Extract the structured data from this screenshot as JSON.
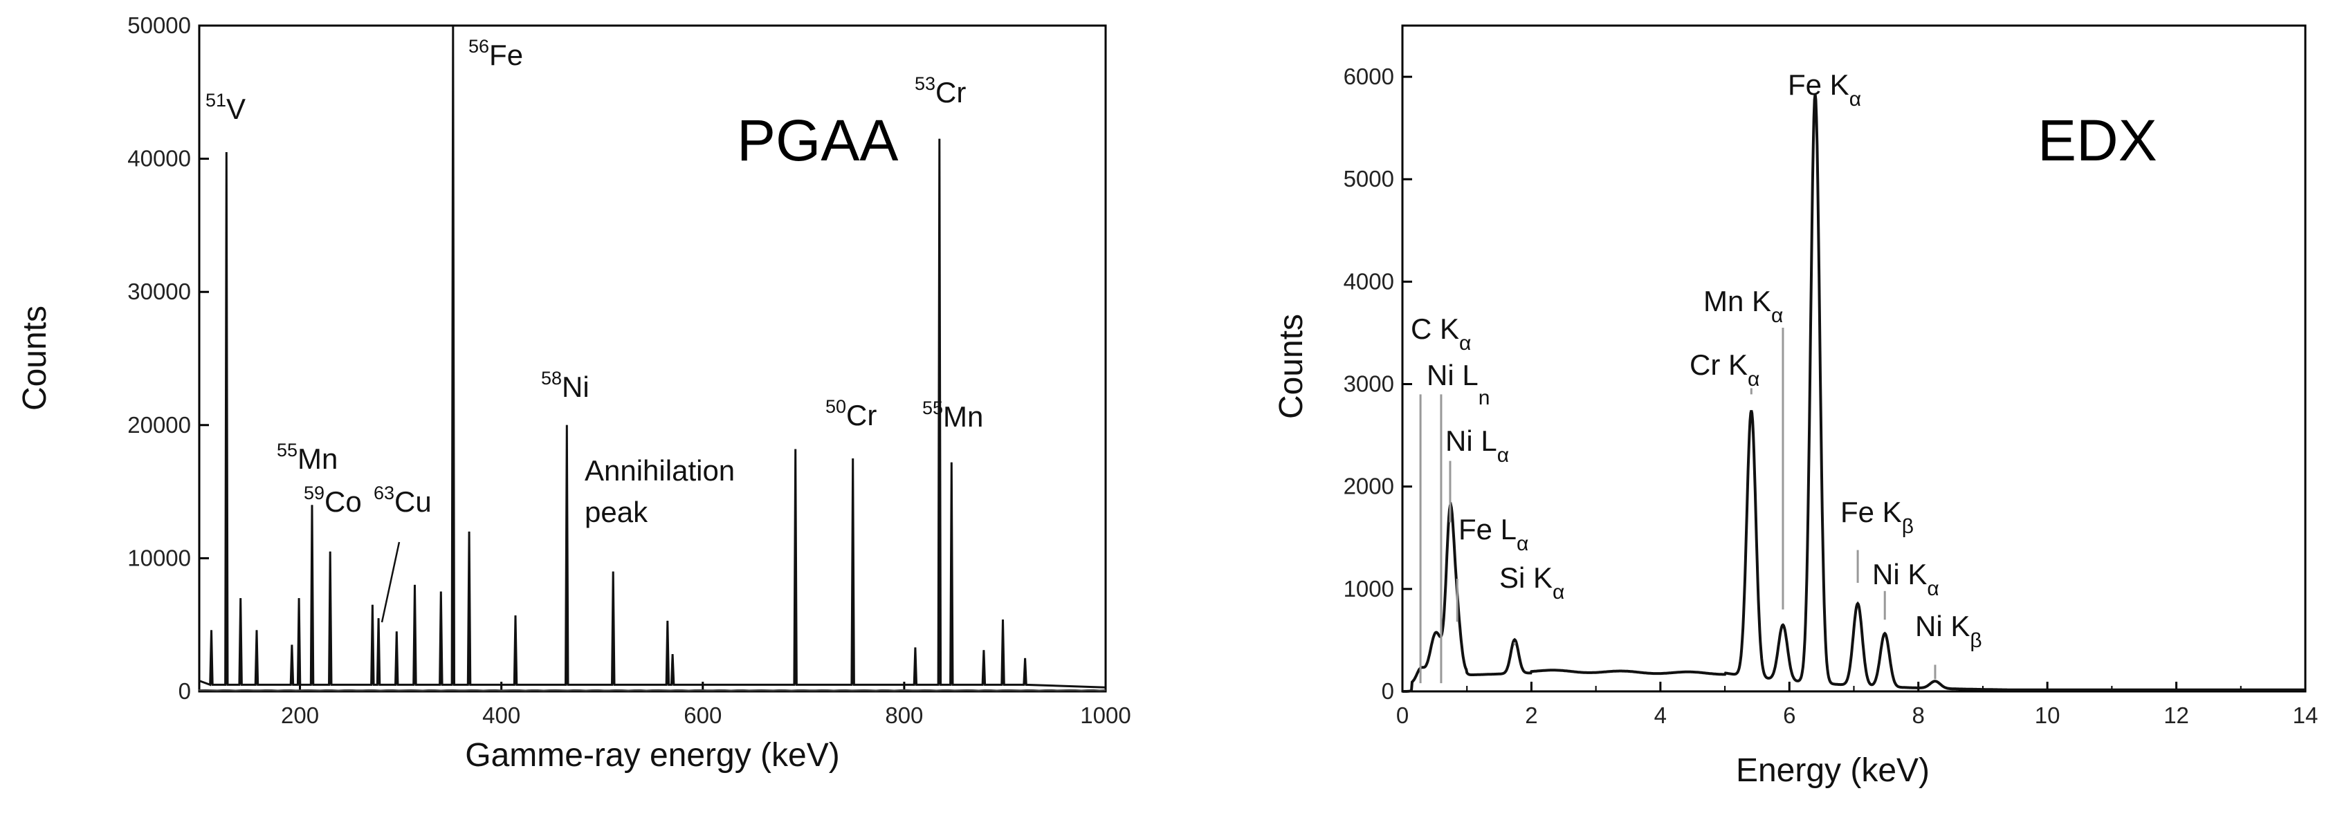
{
  "chart_data": [
    {
      "type": "line",
      "label": "PGAA",
      "xlabel": "Gamme-ray energy (keV)",
      "ylabel": "Counts",
      "xlim": [
        100,
        1000
      ],
      "ylim": [
        0,
        50000
      ],
      "xticks": [
        200,
        400,
        600,
        800,
        1000
      ],
      "yticks": [
        0,
        10000,
        20000,
        30000,
        40000,
        50000
      ],
      "baseline_counts": 500,
      "peaks": [
        {
          "x": 112,
          "y": 4600
        },
        {
          "x": 127,
          "y": 40500
        },
        {
          "x": 141,
          "y": 7000
        },
        {
          "x": 157,
          "y": 4600
        },
        {
          "x": 192,
          "y": 3500
        },
        {
          "x": 199,
          "y": 7000
        },
        {
          "x": 212,
          "y": 14000
        },
        {
          "x": 230,
          "y": 10500
        },
        {
          "x": 272,
          "y": 6500
        },
        {
          "x": 278,
          "y": 5500
        },
        {
          "x": 296,
          "y": 4500
        },
        {
          "x": 314,
          "y": 8000
        },
        {
          "x": 340,
          "y": 7500
        },
        {
          "x": 352,
          "y": 50000
        },
        {
          "x": 368,
          "y": 12000
        },
        {
          "x": 414,
          "y": 5700
        },
        {
          "x": 465,
          "y": 20000
        },
        {
          "x": 511,
          "y": 9000
        },
        {
          "x": 565,
          "y": 5300
        },
        {
          "x": 570,
          "y": 2800
        },
        {
          "x": 692,
          "y": 18200
        },
        {
          "x": 749,
          "y": 17500
        },
        {
          "x": 811,
          "y": 3300
        },
        {
          "x": 835,
          "y": 41500
        },
        {
          "x": 847,
          "y": 17200
        },
        {
          "x": 879,
          "y": 3100
        },
        {
          "x": 898,
          "y": 5400
        },
        {
          "x": 920,
          "y": 2500
        }
      ],
      "annotations": [
        {
          "sup": "51",
          "text": "V",
          "x": 127
        },
        {
          "sup": "56",
          "text": "Fe",
          "x": 352
        },
        {
          "sup": "53",
          "text": "Cr",
          "x": 835
        },
        {
          "sup": "55",
          "text": "Mn",
          "x": 212
        },
        {
          "sup": "59",
          "text": "Co",
          "x": 212
        },
        {
          "sup": "63",
          "text": "Cu",
          "x": 278
        },
        {
          "sup": "58",
          "text": "Ni",
          "x": 465
        },
        {
          "sup": "",
          "text": "Annihilation",
          "x": 511
        },
        {
          "sup": "",
          "text": "peak",
          "x": 511
        },
        {
          "sup": "50",
          "text": "Cr",
          "x": 749
        },
        {
          "sup": "55",
          "text": "Mn",
          "x": 847
        }
      ]
    },
    {
      "type": "line",
      "label": "EDX",
      "xlabel": "Energy (keV)",
      "ylabel": "Counts",
      "xlim": [
        0,
        14
      ],
      "ylim": [
        0,
        6500
      ],
      "xticks": [
        0,
        2,
        4,
        6,
        8,
        10,
        12,
        14
      ],
      "yticks": [
        0,
        1000,
        2000,
        3000,
        4000,
        5000,
        6000
      ],
      "peaks": [
        {
          "x": 0.28,
          "y": 120,
          "w": 0.06
        },
        {
          "x": 0.52,
          "y": 450,
          "w": 0.09
        },
        {
          "x": 0.74,
          "y": 1550,
          "w": 0.06
        },
        {
          "x": 0.85,
          "y": 500,
          "w": 0.06
        },
        {
          "x": 1.74,
          "y": 330,
          "w": 0.06
        },
        {
          "x": 5.41,
          "y": 2600,
          "w": 0.07
        },
        {
          "x": 5.9,
          "y": 540,
          "w": 0.07
        },
        {
          "x": 6.4,
          "y": 5750,
          "w": 0.07
        },
        {
          "x": 7.06,
          "y": 800,
          "w": 0.07
        },
        {
          "x": 7.48,
          "y": 520,
          "w": 0.07
        },
        {
          "x": 8.26,
          "y": 70,
          "w": 0.08
        }
      ],
      "annotations": [
        {
          "text": "Fe K",
          "sub": "α",
          "x": 6.4
        },
        {
          "text": "C K",
          "sub": "α",
          "x": 0.28
        },
        {
          "text": "Ni L",
          "sub": "n",
          "x": 0.6
        },
        {
          "text": "Mn K",
          "sub": "α",
          "x": 5.9
        },
        {
          "text": "Cr K",
          "sub": "α",
          "x": 5.41
        },
        {
          "text": "Ni L",
          "sub": "α",
          "x": 0.74
        },
        {
          "text": "Fe L",
          "sub": "α",
          "x": 0.85
        },
        {
          "text": "Si K",
          "sub": "α",
          "x": 1.74
        },
        {
          "text": "Fe K",
          "sub": "β",
          "x": 7.06
        },
        {
          "text": "Ni K",
          "sub": "α",
          "x": 7.48
        },
        {
          "text": "Ni K",
          "sub": "β",
          "x": 8.26
        }
      ]
    }
  ]
}
